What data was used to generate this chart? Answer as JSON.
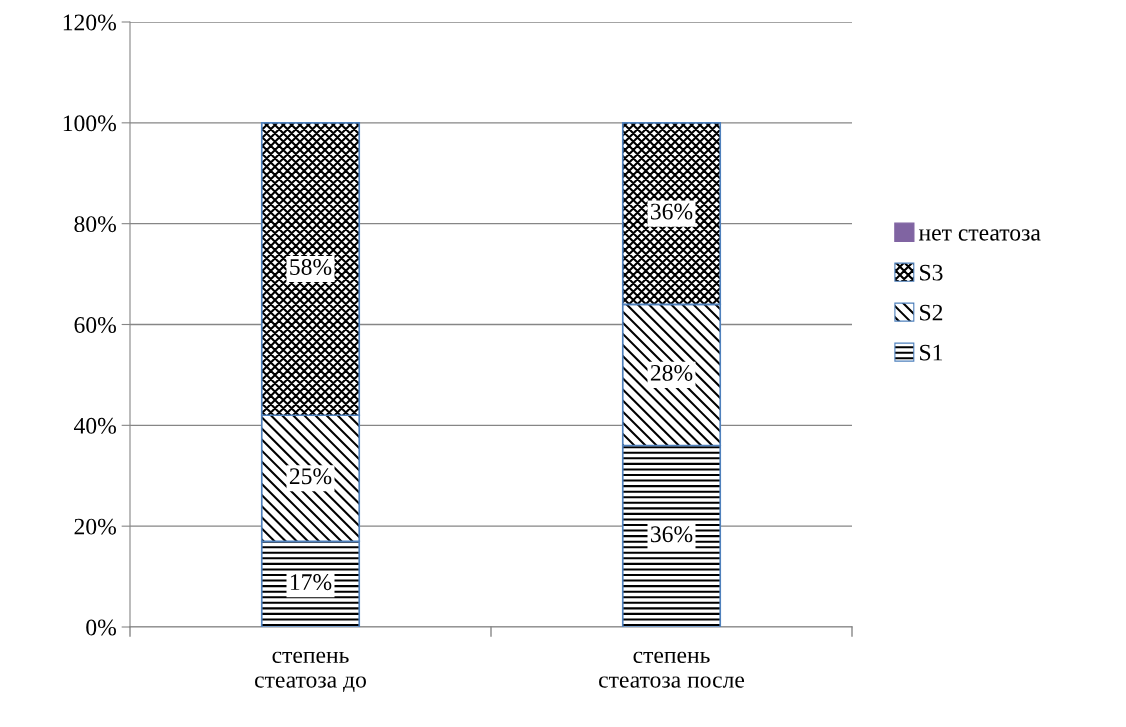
{
  "chart_data": {
    "type": "bar",
    "stacked": true,
    "categories": [
      "степень\nстеатоза до",
      "степень\nстеатоза после"
    ],
    "series": [
      {
        "name": "S1",
        "color": "#4f81bd",
        "values": [
          17,
          36
        ],
        "value_labels": [
          "17%",
          "36%"
        ]
      },
      {
        "name": "S2",
        "color": "#4f81bd",
        "values": [
          25,
          28
        ],
        "value_labels": [
          "25%",
          "28%"
        ]
      },
      {
        "name": "S3",
        "color": "#4f81bd",
        "values": [
          58,
          36
        ],
        "value_labels": [
          "58%",
          "36%"
        ]
      },
      {
        "name": "нет стеатоза",
        "color": "#8064a2",
        "values": [
          0,
          0
        ]
      }
    ],
    "ylim": [
      0,
      120
    ],
    "yticks": [
      {
        "value": 0,
        "label": "0%"
      },
      {
        "value": 20,
        "label": "20%"
      },
      {
        "value": 40,
        "label": "40%"
      },
      {
        "value": 60,
        "label": "60%"
      },
      {
        "value": 80,
        "label": "80%"
      },
      {
        "value": 100,
        "label": "100%"
      },
      {
        "value": 120,
        "label": "120%"
      }
    ],
    "grid": "y",
    "legend": "right"
  }
}
